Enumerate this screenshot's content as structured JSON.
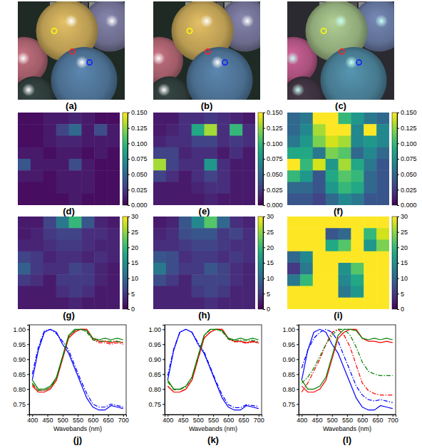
{
  "chart_data": [
    {
      "type": "image",
      "title": "(a)"
    },
    {
      "type": "image",
      "title": "(b)"
    },
    {
      "type": "image",
      "title": "(c)"
    },
    {
      "type": "heatmap",
      "title": "(d)",
      "cells": [
        [
          0.005,
          0.005,
          0.01,
          0.01,
          0.015,
          0.01,
          0.005,
          0.005
        ],
        [
          0.005,
          0.005,
          0.01,
          0.03,
          0.05,
          0.01,
          0.035,
          0.01
        ],
        [
          0.005,
          0.005,
          0.01,
          0.015,
          0.015,
          0.01,
          0.01,
          0.01
        ],
        [
          0.01,
          0.01,
          0.005,
          0.01,
          0.01,
          0.005,
          0.01,
          0.005
        ],
        [
          0.04,
          0.01,
          0.01,
          0.01,
          0.035,
          0.01,
          0.005,
          0.005
        ],
        [
          0.01,
          0.01,
          0.005,
          0.01,
          0.01,
          0.01,
          0.005,
          0.005
        ],
        [
          0.005,
          0.005,
          0.005,
          0.01,
          0.01,
          0.01,
          0.005,
          0.005
        ],
        [
          0.005,
          0.005,
          0.005,
          0.005,
          0.01,
          0.005,
          0.005,
          0.005
        ]
      ],
      "colorbar": {
        "range": [
          0,
          0.15
        ],
        "ticks": [
          {
            "value": 0,
            "label": "0.000"
          },
          0.025,
          {
            "value": 0.05,
            "label": "0.050"
          },
          0.075,
          {
            "value": 0.1,
            "label": "0.100"
          },
          0.125,
          {
            "value": 0.15,
            "label": "0.150"
          }
        ]
      }
    },
    {
      "type": "heatmap",
      "title": "(e)",
      "cells": [
        [
          0.01,
          0.01,
          0.02,
          0.02,
          0.025,
          0.02,
          0.015,
          0.01
        ],
        [
          0.01,
          0.015,
          0.02,
          0.09,
          0.13,
          0.02,
          0.1,
          0.02
        ],
        [
          0.015,
          0.02,
          0.02,
          0.03,
          0.03,
          0.02,
          0.025,
          0.02
        ],
        [
          0.03,
          0.03,
          0.015,
          0.02,
          0.02,
          0.01,
          0.02,
          0.01
        ],
        [
          0.13,
          0.03,
          0.02,
          0.02,
          0.08,
          0.02,
          0.01,
          0.01
        ],
        [
          0.03,
          0.02,
          0.01,
          0.02,
          0.03,
          0.02,
          0.01,
          0.01
        ],
        [
          0.01,
          0.01,
          0.01,
          0.015,
          0.02,
          0.02,
          0.01,
          0.01
        ],
        [
          0.01,
          0.01,
          0.01,
          0.01,
          0.015,
          0.01,
          0.01,
          0.01
        ]
      ],
      "colorbar": {
        "range": [
          0,
          0.15
        ],
        "ticks": [
          {
            "value": 0,
            "label": "0.000"
          },
          0.025,
          {
            "value": 0.05,
            "label": "0.050"
          },
          0.075,
          {
            "value": 0.1,
            "label": "0.100"
          },
          0.125,
          {
            "value": 0.15,
            "label": "0.150"
          }
        ]
      }
    },
    {
      "type": "heatmap",
      "title": "(f)",
      "cells": [
        [
          0.05,
          0.06,
          0.15,
          0.15,
          0.1,
          0.08,
          0.06,
          0.05
        ],
        [
          0.05,
          0.07,
          0.13,
          0.15,
          0.15,
          0.07,
          0.15,
          0.07
        ],
        [
          0.06,
          0.08,
          0.12,
          0.14,
          0.13,
          0.07,
          0.08,
          0.07
        ],
        [
          0.09,
          0.09,
          0.06,
          0.12,
          0.11,
          0.05,
          0.07,
          0.05
        ],
        [
          0.15,
          0.1,
          0.14,
          0.08,
          0.13,
          0.09,
          0.06,
          0.04
        ],
        [
          0.1,
          0.08,
          0.04,
          0.09,
          0.11,
          0.1,
          0.05,
          0.04
        ],
        [
          0.05,
          0.05,
          0.04,
          0.08,
          0.1,
          0.09,
          0.05,
          0.04
        ],
        [
          0.04,
          0.04,
          0.03,
          0.05,
          0.07,
          0.06,
          0.04,
          0.04
        ]
      ],
      "colorbar": {
        "range": [
          0,
          0.15
        ],
        "ticks": [
          {
            "value": 0,
            "label": "0.000"
          },
          0.025,
          {
            "value": 0.05,
            "label": "0.050"
          },
          0.075,
          {
            "value": 0.1,
            "label": "0.100"
          },
          0.125,
          {
            "value": 0.15,
            "label": "0.150"
          }
        ]
      }
    },
    {
      "type": "heatmap",
      "title": "(g)",
      "cells": [
        [
          2,
          2,
          6,
          12,
          20,
          8,
          3,
          2
        ],
        [
          2,
          3,
          5,
          6,
          6,
          4,
          4,
          3
        ],
        [
          3,
          3,
          4,
          5,
          5,
          4,
          3,
          3
        ],
        [
          6,
          5,
          3,
          4,
          4,
          3,
          4,
          3
        ],
        [
          9,
          5,
          4,
          4,
          6,
          5,
          3,
          2
        ],
        [
          5,
          4,
          2,
          5,
          5,
          5,
          3,
          2
        ],
        [
          2,
          2,
          2,
          4,
          5,
          4,
          2,
          2
        ],
        [
          2,
          2,
          2,
          2,
          3,
          2,
          2,
          2
        ]
      ],
      "colorbar": {
        "range": [
          0,
          30
        ],
        "ticks": [
          0,
          5,
          10,
          15,
          20,
          25,
          30
        ]
      }
    },
    {
      "type": "heatmap",
      "title": "(h)",
      "cells": [
        [
          2,
          3,
          8,
          14,
          22,
          10,
          4,
          3
        ],
        [
          3,
          4,
          7,
          8,
          8,
          5,
          6,
          4
        ],
        [
          4,
          4,
          5,
          6,
          6,
          5,
          4,
          4
        ],
        [
          8,
          7,
          4,
          5,
          5,
          4,
          5,
          4
        ],
        [
          12,
          7,
          5,
          5,
          8,
          6,
          4,
          3
        ],
        [
          7,
          5,
          3,
          6,
          6,
          6,
          4,
          3
        ],
        [
          3,
          3,
          3,
          5,
          6,
          5,
          3,
          3
        ],
        [
          3,
          3,
          3,
          3,
          4,
          3,
          3,
          3
        ]
      ],
      "colorbar": {
        "range": [
          0,
          30
        ],
        "ticks": [
          0,
          5,
          10,
          15,
          20,
          25,
          30
        ]
      }
    },
    {
      "type": "heatmap",
      "title": "(i)",
      "cells": [
        [
          30,
          30,
          30,
          30,
          30,
          30,
          30,
          30
        ],
        [
          30,
          30,
          30,
          8,
          10,
          30,
          20,
          28
        ],
        [
          30,
          30,
          30,
          18,
          22,
          30,
          16,
          24
        ],
        [
          10,
          14,
          30,
          30,
          30,
          30,
          30,
          30
        ],
        [
          5,
          12,
          30,
          30,
          15,
          22,
          30,
          30
        ],
        [
          12,
          20,
          30,
          30,
          14,
          18,
          30,
          30
        ],
        [
          30,
          30,
          30,
          30,
          12,
          16,
          30,
          30
        ],
        [
          30,
          30,
          30,
          30,
          30,
          30,
          30,
          30
        ]
      ],
      "colorbar": {
        "range": [
          0,
          30
        ],
        "ticks": [
          0,
          5,
          10,
          15,
          20,
          25,
          30
        ]
      }
    },
    {
      "type": "line",
      "title": "(j)",
      "x_label": "Wavebands (nm)",
      "x": [
        400,
        420,
        440,
        460,
        480,
        500,
        520,
        540,
        560,
        580,
        600,
        620,
        640,
        660,
        680,
        700
      ],
      "xlim": [
        390,
        710
      ],
      "xticks": [
        400,
        450,
        500,
        550,
        600,
        650,
        700
      ],
      "ylim": [
        0.715,
        1.015
      ],
      "yticks": [
        0.75,
        {
          "value": 0.8,
          "label": "0.80"
        },
        0.85,
        {
          "value": 0.9,
          "label": "0.90"
        },
        0.95,
        {
          "value": 1,
          "label": "1.00"
        }
      ],
      "series": [
        {
          "color": "#0000ff",
          "line_style": "solid",
          "values": [
            0.83,
            0.93,
            0.99,
            1.0,
            0.99,
            0.95,
            0.92,
            0.87,
            0.82,
            0.77,
            0.74,
            0.73,
            0.73,
            0.745,
            0.74,
            0.735
          ]
        },
        {
          "color": "#0000ff",
          "line_style": "dashdot",
          "values": [
            0.85,
            0.94,
            0.995,
            1.0,
            0.985,
            0.96,
            0.93,
            0.88,
            0.83,
            0.785,
            0.75,
            0.74,
            0.74,
            0.75,
            0.745,
            0.74
          ]
        },
        {
          "color": "#ff0000",
          "line_style": "solid",
          "values": [
            0.81,
            0.79,
            0.79,
            0.8,
            0.83,
            0.9,
            0.97,
            0.99,
            1.0,
            1.0,
            0.97,
            0.96,
            0.96,
            0.955,
            0.96,
            0.955
          ]
        },
        {
          "color": "#ff0000",
          "line_style": "dashdot",
          "values": [
            0.815,
            0.795,
            0.795,
            0.805,
            0.835,
            0.905,
            0.975,
            0.995,
            1.0,
            1.0,
            0.965,
            0.955,
            0.955,
            0.95,
            0.955,
            0.95
          ]
        },
        {
          "color": "#008000",
          "line_style": "solid",
          "values": [
            0.83,
            0.8,
            0.8,
            0.81,
            0.84,
            0.91,
            0.98,
            1.0,
            1.0,
            0.995,
            0.97,
            0.965,
            0.97,
            0.965,
            0.97,
            0.965
          ]
        },
        {
          "color": "#008000",
          "line_style": "dashdot",
          "values": [
            0.82,
            0.795,
            0.795,
            0.805,
            0.835,
            0.905,
            0.975,
            0.995,
            1.0,
            0.99,
            0.965,
            0.96,
            0.96,
            0.96,
            0.96,
            0.955
          ]
        }
      ]
    },
    {
      "type": "line",
      "title": "(k)",
      "x_label": "Wavebands (nm)",
      "x": [
        400,
        420,
        440,
        460,
        480,
        500,
        520,
        540,
        560,
        580,
        600,
        620,
        640,
        660,
        680,
        700
      ],
      "xlim": [
        390,
        710
      ],
      "xticks": [
        400,
        450,
        500,
        550,
        600,
        650,
        700
      ],
      "ylim": [
        0.715,
        1.015
      ],
      "yticks": [
        0.75,
        {
          "value": 0.8,
          "label": "0.80"
        },
        0.85,
        {
          "value": 0.9,
          "label": "0.90"
        },
        0.95,
        {
          "value": 1,
          "label": "1.00"
        }
      ],
      "series": [
        {
          "color": "#0000ff",
          "line_style": "solid",
          "values": [
            0.83,
            0.93,
            0.99,
            1.0,
            0.99,
            0.95,
            0.92,
            0.87,
            0.82,
            0.77,
            0.74,
            0.73,
            0.73,
            0.745,
            0.74,
            0.735
          ]
        },
        {
          "color": "#0000ff",
          "line_style": "dashdot",
          "values": [
            0.845,
            0.935,
            0.99,
            1.0,
            0.99,
            0.955,
            0.925,
            0.875,
            0.825,
            0.78,
            0.748,
            0.738,
            0.738,
            0.748,
            0.745,
            0.742
          ]
        },
        {
          "color": "#ff0000",
          "line_style": "solid",
          "values": [
            0.81,
            0.79,
            0.79,
            0.8,
            0.83,
            0.9,
            0.97,
            0.99,
            1.0,
            1.0,
            0.97,
            0.96,
            0.96,
            0.955,
            0.96,
            0.955
          ]
        },
        {
          "color": "#ff0000",
          "line_style": "dashdot",
          "values": [
            0.81,
            0.79,
            0.79,
            0.8,
            0.83,
            0.9,
            0.97,
            0.99,
            1.0,
            1.0,
            0.968,
            0.958,
            0.958,
            0.953,
            0.958,
            0.953
          ]
        },
        {
          "color": "#008000",
          "line_style": "solid",
          "values": [
            0.83,
            0.8,
            0.8,
            0.81,
            0.84,
            0.91,
            0.98,
            1.0,
            1.0,
            0.995,
            0.97,
            0.965,
            0.97,
            0.965,
            0.97,
            0.965
          ]
        },
        {
          "color": "#008000",
          "line_style": "dashdot",
          "values": [
            0.825,
            0.798,
            0.798,
            0.808,
            0.838,
            0.908,
            0.978,
            0.998,
            1.0,
            0.992,
            0.967,
            0.962,
            0.963,
            0.962,
            0.963,
            0.958
          ]
        }
      ]
    },
    {
      "type": "line",
      "title": "(l)",
      "x_label": "Wavebands (nm)",
      "x": [
        400,
        420,
        440,
        460,
        480,
        500,
        520,
        540,
        560,
        580,
        600,
        620,
        640,
        660,
        680,
        700
      ],
      "xlim": [
        390,
        710
      ],
      "xticks": [
        400,
        450,
        500,
        550,
        600,
        650,
        700
      ],
      "ylim": [
        0.715,
        1.015
      ],
      "yticks": [
        0.75,
        {
          "value": 0.8,
          "label": "0.80"
        },
        0.85,
        {
          "value": 0.9,
          "label": "0.90"
        },
        0.95,
        {
          "value": 1,
          "label": "1.00"
        }
      ],
      "series": [
        {
          "color": "#0000ff",
          "line_style": "solid",
          "values": [
            0.83,
            0.93,
            0.99,
            1.0,
            0.99,
            0.95,
            0.92,
            0.87,
            0.82,
            0.77,
            0.74,
            0.73,
            0.73,
            0.745,
            0.74,
            0.735
          ]
        },
        {
          "color": "#0000ff",
          "line_style": "dashdot",
          "values": [
            0.87,
            0.93,
            0.97,
            0.99,
            1.0,
            0.99,
            0.96,
            0.91,
            0.86,
            0.81,
            0.78,
            0.765,
            0.76,
            0.765,
            0.76,
            0.755
          ]
        },
        {
          "color": "#ff0000",
          "line_style": "solid",
          "values": [
            0.81,
            0.79,
            0.79,
            0.8,
            0.83,
            0.9,
            0.97,
            0.99,
            1.0,
            1.0,
            0.97,
            0.96,
            0.96,
            0.955,
            0.96,
            0.955
          ]
        },
        {
          "color": "#ff0000",
          "line_style": "dashdot",
          "values": [
            0.79,
            0.82,
            0.86,
            0.9,
            0.95,
            0.99,
            1.0,
            0.98,
            0.94,
            0.88,
            0.82,
            0.795,
            0.785,
            0.78,
            0.78,
            0.78
          ]
        },
        {
          "color": "#008000",
          "line_style": "solid",
          "values": [
            0.83,
            0.8,
            0.8,
            0.81,
            0.84,
            0.91,
            0.98,
            1.0,
            1.0,
            0.995,
            0.97,
            0.965,
            0.97,
            0.965,
            0.97,
            0.965
          ]
        },
        {
          "color": "#008000",
          "line_style": "dashdot",
          "values": [
            0.82,
            0.84,
            0.87,
            0.91,
            0.95,
            0.98,
            1.0,
            1.0,
            0.98,
            0.94,
            0.89,
            0.86,
            0.85,
            0.845,
            0.845,
            0.845
          ]
        }
      ]
    }
  ]
}
